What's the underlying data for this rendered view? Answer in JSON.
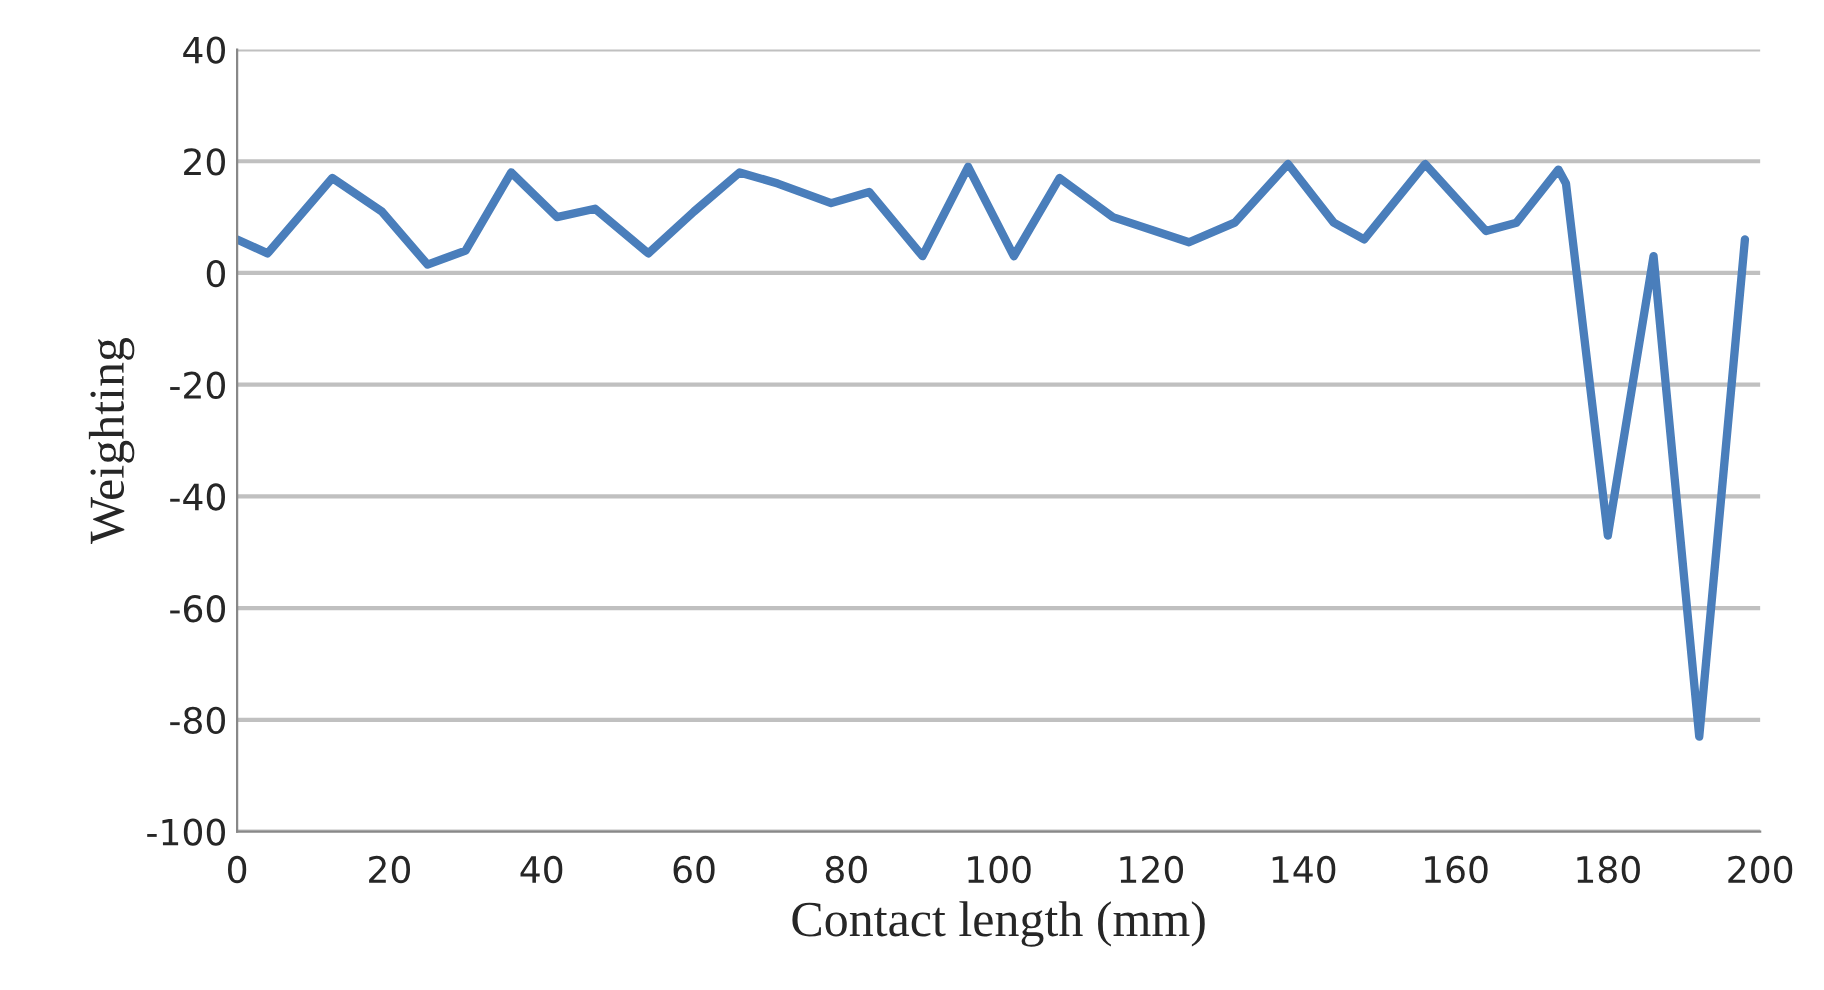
{
  "chart_data": {
    "type": "line",
    "xlabel": "Contact length (mm)",
    "ylabel": "Weighting",
    "xlim": [
      0,
      200
    ],
    "xticks": [
      0,
      20,
      40,
      60,
      80,
      100,
      120,
      140,
      160,
      180,
      200
    ],
    "ylim": [
      -100,
      40
    ],
    "yticks": [
      -100,
      -80,
      -60,
      -40,
      -20,
      0,
      20,
      40
    ],
    "grid": "y",
    "line_style": "solid",
    "series": [
      {
        "color": "#4a7ebb",
        "x": [
          0,
          4,
          12.5,
          19,
          25,
          30,
          36,
          42,
          47,
          54,
          60,
          66,
          71,
          78,
          83,
          90,
          96,
          102,
          108,
          115,
          125,
          131,
          138,
          144,
          148,
          156,
          164,
          168,
          173.5,
          174.5,
          180,
          186,
          192,
          198
        ],
        "values": [
          6,
          3.5,
          17,
          11,
          1.5,
          4,
          18,
          10,
          11.5,
          3.5,
          11,
          18,
          16,
          12.5,
          14.5,
          3,
          19,
          3,
          17,
          10,
          5.5,
          9,
          19.5,
          9,
          6,
          19.5,
          7.5,
          9,
          18.5,
          16,
          -47,
          3,
          -83,
          6
        ]
      }
    ]
  }
}
